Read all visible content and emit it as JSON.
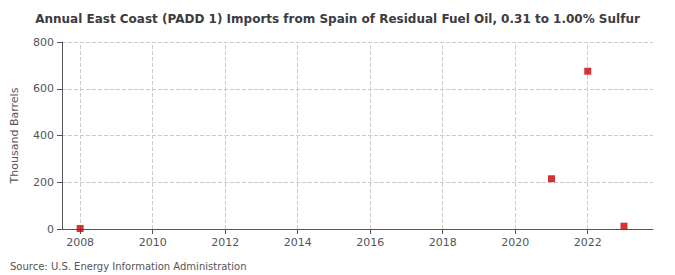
{
  "chart_data": {
    "type": "scatter",
    "title": "Annual East Coast (PADD 1) Imports from Spain of Residual Fuel Oil, 0.31 to 1.00% Sulfur",
    "ylabel": "Thousand Barrels",
    "annotation": "Source: U.S. Energy Information Administration",
    "x": [
      2008,
      2021,
      2022,
      2023
    ],
    "values": [
      2,
      215,
      675,
      12
    ],
    "color": "#cc0000",
    "marker": "square",
    "xlim": [
      2007.5,
      2023.8
    ],
    "xticks": [
      2008,
      2010,
      2012,
      2014,
      2016,
      2018,
      2020,
      2022
    ],
    "ylim": [
      0,
      800
    ],
    "yticks": [
      0,
      200,
      400,
      600,
      800
    ],
    "grid": true
  }
}
